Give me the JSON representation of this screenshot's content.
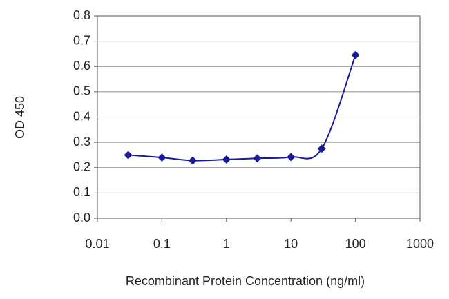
{
  "chart_data": {
    "type": "line",
    "y_label": "OD 450",
    "x_label": "Recombinant Protein Concentration (ng/ml)",
    "xscale": "log",
    "x": [
      0.03,
      0.1,
      0.3,
      1,
      3,
      10,
      30,
      100
    ],
    "series": [
      {
        "color": "#1a1a99",
        "values": [
          0.25,
          0.24,
          0.228,
          0.232,
          0.237,
          0.242,
          0.275,
          0.645
        ]
      }
    ],
    "xlim": [
      0.01,
      1000
    ],
    "xticks": [
      0.01,
      0.1,
      1,
      10,
      100,
      1000
    ],
    "ylim": [
      0,
      0.8
    ],
    "yticks": [
      {
        "value": 0,
        "label": "0.0"
      },
      0.1,
      0.2,
      0.3,
      0.4,
      0.5,
      0.6,
      0.7,
      0.8
    ],
    "grid": true
  }
}
